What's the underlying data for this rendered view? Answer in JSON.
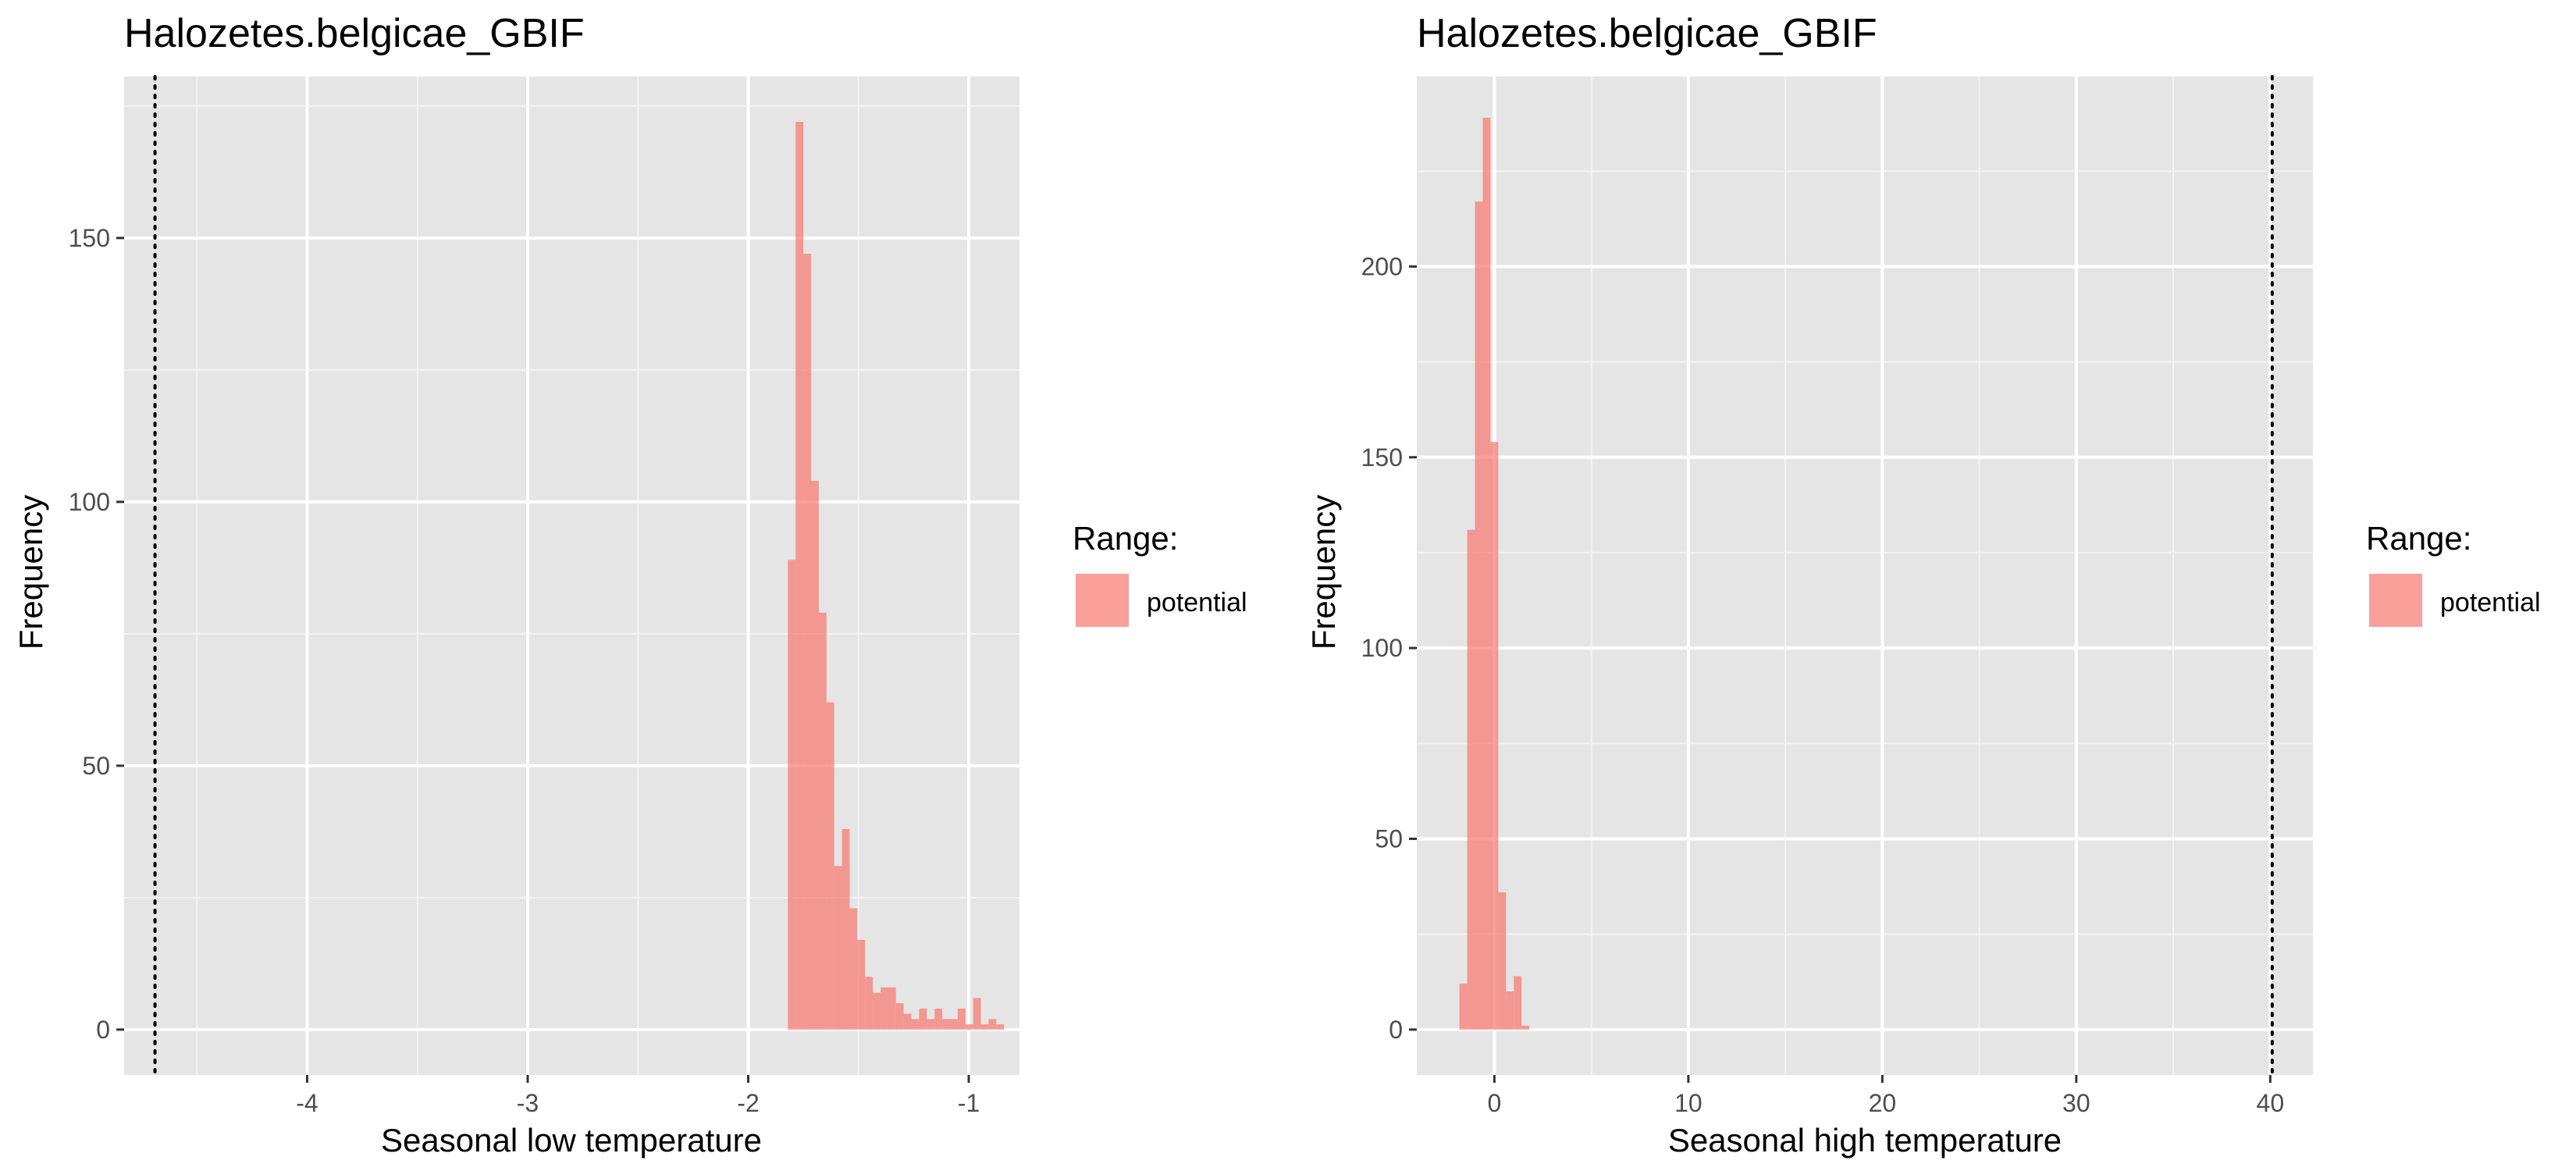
{
  "colors": {
    "panel_background": "#e5e5e5",
    "grid_major": "#ffffff",
    "grid_minor": "#f2f2f2",
    "bar_fill": "#f8766d",
    "bar_opacity": 0.7,
    "reference_line": "#000000"
  },
  "chart_data": [
    {
      "type": "bar",
      "title": "Halozetes.belgicae_GBIF",
      "xlabel": "Seasonal low temperature",
      "ylabel": "Frequency",
      "xlim": [
        -4.83,
        -0.77
      ],
      "ylim": [
        -8.6,
        180.6
      ],
      "x_ticks": [
        -4,
        -3,
        -2,
        -1
      ],
      "y_ticks": [
        0,
        50,
        100,
        150
      ],
      "grid": true,
      "legend": {
        "title": "Range:",
        "entries": [
          "potential"
        ],
        "position": "right"
      },
      "reference_line": {
        "x": -4.69,
        "style": "dotted"
      },
      "series": [
        {
          "name": "potential",
          "bin_edges": [
            -1.82,
            -1.785,
            -1.75,
            -1.715,
            -1.68,
            -1.645,
            -1.61,
            -1.575,
            -1.54,
            -1.505,
            -1.47,
            -1.435,
            -1.4,
            -1.365,
            -1.33,
            -1.295,
            -1.26,
            -1.225,
            -1.19,
            -1.155,
            -1.12,
            -1.085,
            -1.05,
            -1.015,
            -0.98,
            -0.945,
            -0.91,
            -0.875,
            -0.84
          ],
          "counts": [
            89,
            172,
            147,
            104,
            79,
            62,
            31,
            38,
            23,
            17,
            10,
            7,
            8,
            8,
            5,
            3,
            2,
            4,
            2,
            4,
            2,
            2,
            4,
            1,
            6,
            1,
            2,
            1
          ]
        }
      ]
    },
    {
      "type": "bar",
      "title": "Halozetes.belgicae_GBIF",
      "xlabel": "Seasonal high temperature",
      "ylabel": "Frequency",
      "xlim": [
        -4.0,
        42.2
      ],
      "ylim": [
        -11.9,
        249.8
      ],
      "x_ticks": [
        0,
        10,
        20,
        30,
        40
      ],
      "y_ticks": [
        0,
        50,
        100,
        150,
        200,
        250
      ],
      "grid": true,
      "legend": {
        "title": "Range:",
        "entries": [
          "potential"
        ],
        "position": "right"
      },
      "reference_line": {
        "x": 40.1,
        "style": "dotted"
      },
      "series": [
        {
          "name": "potential",
          "bin_edges": [
            -1.8,
            -1.4,
            -1.0,
            -0.6,
            -0.2,
            0.2,
            0.6,
            1.0,
            1.4,
            1.8
          ],
          "counts": [
            12,
            131,
            217,
            239,
            154,
            36,
            10,
            14,
            1
          ]
        }
      ]
    }
  ]
}
